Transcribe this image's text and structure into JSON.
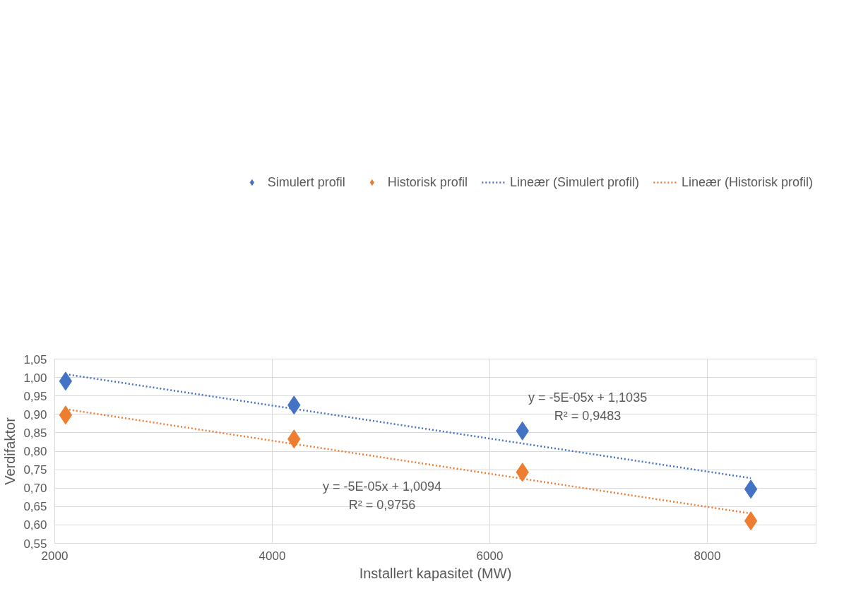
{
  "chart_data": {
    "type": "scatter",
    "xlabel": "Installert kapasitet (MW)",
    "ylabel": "Verdifaktor",
    "xlim": [
      2000,
      9000
    ],
    "xticks": [
      2000,
      4000,
      6000,
      8000
    ],
    "ylim": [
      0.55,
      1.05
    ],
    "yticks": [
      {
        "value": 0.55,
        "label": "0,55"
      },
      {
        "value": 0.6,
        "label": "0,60"
      },
      {
        "value": 0.65,
        "label": "0,65"
      },
      {
        "value": 0.7,
        "label": "0,70"
      },
      {
        "value": 0.75,
        "label": "0,75"
      },
      {
        "value": 0.8,
        "label": "0,80"
      },
      {
        "value": 0.85,
        "label": "0,85"
      },
      {
        "value": 0.9,
        "label": "0,90"
      },
      {
        "value": 0.95,
        "label": "0,95"
      },
      {
        "value": 1.0,
        "label": "1,00"
      },
      {
        "value": 1.05,
        "label": "1,05"
      }
    ],
    "grid": true,
    "legend": "top",
    "marker": "diamond",
    "series": [
      {
        "name": "Simulert profil",
        "color": "#4472c4",
        "x": [
          2100,
          4200,
          6300,
          8400
        ],
        "values": [
          0.99,
          0.925,
          0.855,
          0.697
        ]
      },
      {
        "name": "Historisk profil",
        "color": "#ed7d31",
        "x": [
          2100,
          4200,
          6300,
          8400
        ],
        "values": [
          0.898,
          0.833,
          0.743,
          0.611
        ]
      },
      {
        "name": "Lineær (Simulert profil)",
        "type": "line",
        "line_style": "dotted",
        "marker": "none",
        "color": "#4472c4",
        "x": [
          2100,
          8400
        ],
        "values": [
          1.009,
          0.727
        ]
      },
      {
        "name": "Lineær (Historisk profil)",
        "type": "line",
        "line_style": "dotted",
        "marker": "none",
        "color": "#ed7d31",
        "x": [
          2100,
          8400
        ],
        "values": [
          0.914,
          0.631
        ]
      }
    ],
    "annotations": [
      "y = -5E-05x + 1,1035\nR² = 0,9483",
      "y = -5E-05x + 1,0094\nR² = 0,9756"
    ]
  }
}
